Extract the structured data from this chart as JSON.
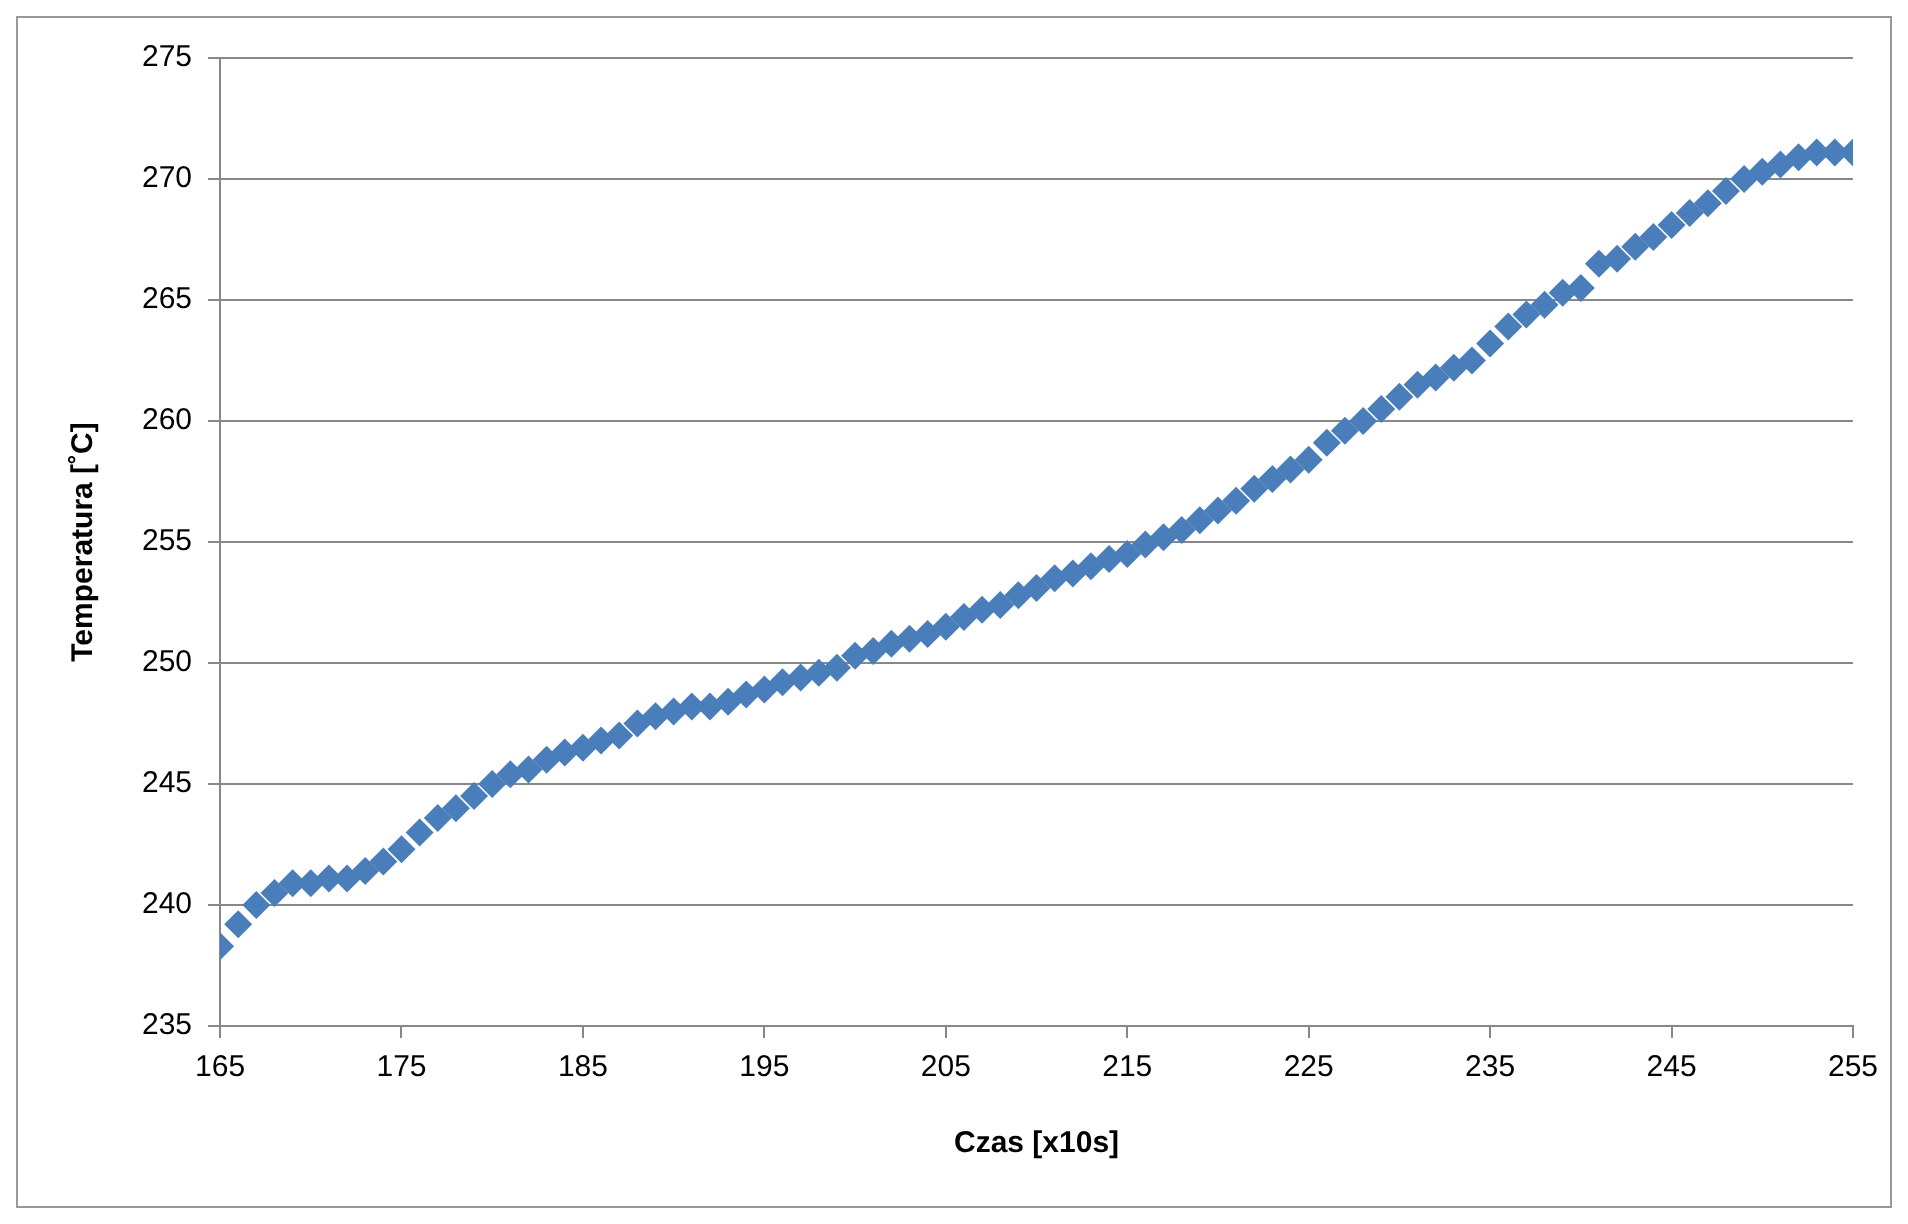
{
  "chart_data": {
    "type": "scatter",
    "xlabel": "Czas [x10s]",
    "ylabel": "Temperatura [˚C]",
    "x": [
      165,
      166,
      167,
      168,
      169,
      170,
      171,
      172,
      173,
      174,
      175,
      176,
      177,
      178,
      179,
      180,
      181,
      182,
      183,
      184,
      185,
      186,
      187,
      188,
      189,
      190,
      191,
      192,
      193,
      194,
      195,
      196,
      197,
      198,
      199,
      200,
      201,
      202,
      203,
      204,
      205,
      206,
      207,
      208,
      209,
      210,
      211,
      212,
      213,
      214,
      215,
      216,
      217,
      218,
      219,
      220,
      221,
      222,
      223,
      224,
      225,
      226,
      227,
      228,
      229,
      230,
      231,
      232,
      233,
      234,
      235,
      236,
      237,
      238,
      239,
      240,
      241,
      242,
      243,
      244,
      245,
      246,
      247,
      248,
      249,
      250,
      251,
      252,
      253,
      254,
      255
    ],
    "series": [
      {
        "color": "#4a7ebb",
        "values": [
          238.3,
          239.2,
          240.0,
          240.5,
          240.9,
          240.9,
          241.1,
          241.1,
          241.4,
          241.8,
          242.3,
          243.0,
          243.6,
          244.0,
          244.5,
          245.0,
          245.4,
          245.6,
          246.0,
          246.3,
          246.5,
          246.8,
          247.0,
          247.5,
          247.8,
          248.0,
          248.2,
          248.2,
          248.4,
          248.7,
          248.9,
          249.2,
          249.4,
          249.6,
          249.8,
          250.3,
          250.5,
          250.8,
          251.0,
          251.2,
          251.5,
          251.9,
          252.2,
          252.4,
          252.8,
          253.1,
          253.5,
          253.7,
          254.0,
          254.3,
          254.5,
          254.9,
          255.2,
          255.5,
          255.9,
          256.3,
          256.7,
          257.2,
          257.6,
          258.0,
          258.4,
          259.1,
          259.6,
          260.0,
          260.5,
          261.0,
          261.5,
          261.8,
          262.2,
          262.5,
          263.2,
          263.9,
          264.4,
          264.8,
          265.3,
          265.5,
          266.5,
          266.7,
          267.2,
          267.6,
          268.1,
          268.6,
          269.0,
          269.5,
          270.0,
          270.3,
          270.6,
          270.9,
          271.1,
          271.1,
          271.1
        ]
      }
    ],
    "xlim": [
      165,
      255
    ],
    "xticks": [
      165,
      175,
      185,
      195,
      205,
      215,
      225,
      235,
      245,
      255
    ],
    "ylim": [
      235,
      275
    ],
    "yticks": [
      235,
      240,
      245,
      250,
      255,
      260,
      265,
      270,
      275
    ],
    "grid": "y",
    "legend": false,
    "marker": "diamond"
  }
}
